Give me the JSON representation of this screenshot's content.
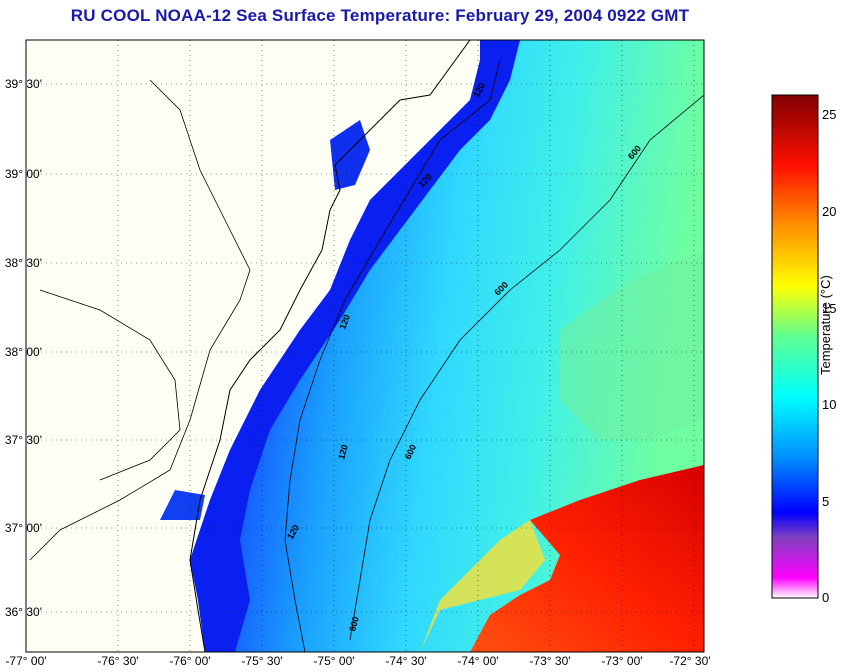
{
  "title": "RU COOL  NOAA-12  Sea Surface Temperature:  February 29, 2004 0922 GMT",
  "map": {
    "lat_labels": [
      "39° 30'",
      "39° 00'",
      "38° 30'",
      "38° 00'",
      "37° 30'",
      "37° 00'",
      "36° 30'"
    ],
    "lon_labels": [
      "-77° 00'",
      "-76° 30'",
      "-76° 00'",
      "-75° 30'",
      "-75° 00'",
      "-74° 30'",
      "-74° 00'",
      "-73° 30'",
      "-73° 00'",
      "-72° 30'"
    ],
    "contour_labels": [
      "120",
      "120",
      "120",
      "120",
      "120",
      "600",
      "600",
      "600",
      "600"
    ],
    "land_color": "#fffef4",
    "cloud_mask_color": "#ffffff"
  },
  "colorbar": {
    "label": "Temperature (°C)",
    "ticks": [
      "25",
      "20",
      "15",
      "10",
      "5",
      "0"
    ],
    "range": [
      0,
      26
    ],
    "colors": [
      "#ffffff",
      "#ff00ff",
      "#8040c0",
      "#0000ff",
      "#00a0ff",
      "#00ffff",
      "#80ff80",
      "#ffff00",
      "#ff8000",
      "#ff0000",
      "#800000"
    ]
  }
}
